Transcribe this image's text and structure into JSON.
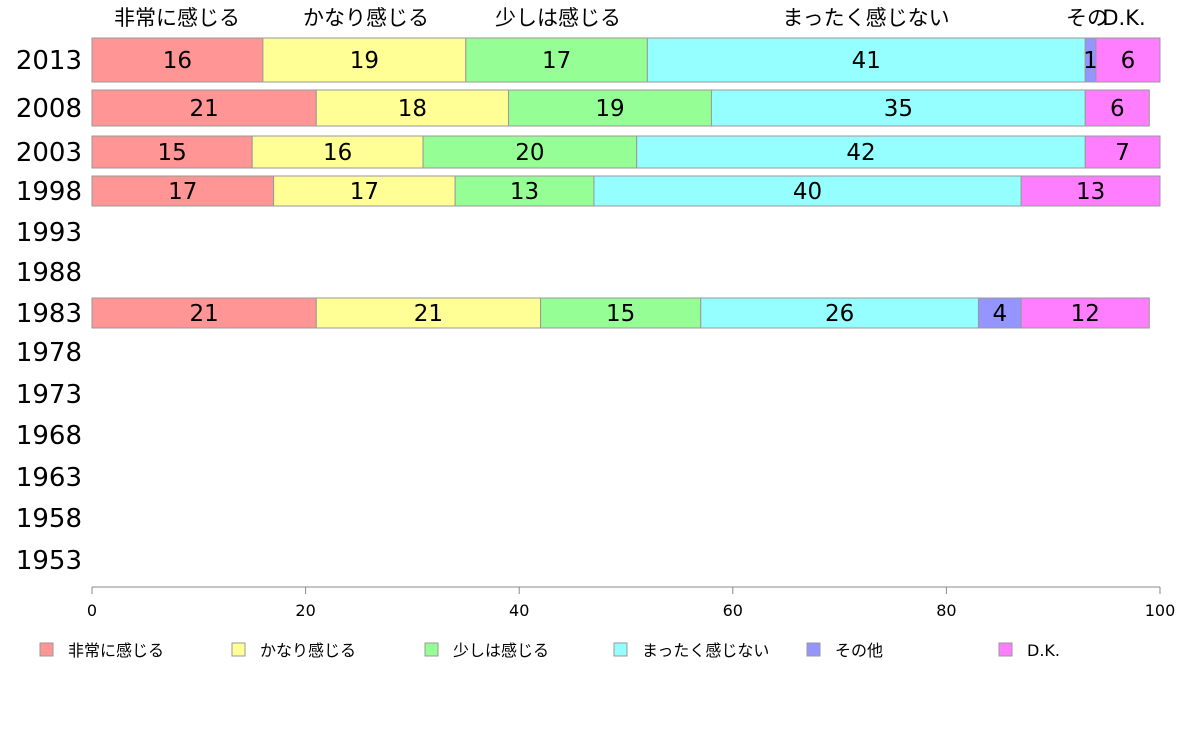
{
  "chart_data": {
    "type": "bar",
    "orientation": "horizontal",
    "stacked": true,
    "categories": [
      "2013",
      "2008",
      "2003",
      "1998",
      "1993",
      "1988",
      "1983",
      "1978",
      "1973",
      "1968",
      "1963",
      "1958",
      "1953"
    ],
    "series": [
      {
        "name": "非常に感じる",
        "color": "#ff9595",
        "values": [
          16,
          21,
          15,
          17,
          null,
          null,
          21,
          null,
          null,
          null,
          null,
          null,
          null
        ]
      },
      {
        "name": "かなり感じる",
        "color": "#ffff95",
        "values": [
          19,
          18,
          16,
          17,
          null,
          null,
          21,
          null,
          null,
          null,
          null,
          null,
          null
        ]
      },
      {
        "name": "少しは感じる",
        "color": "#95ff95",
        "values": [
          17,
          19,
          20,
          13,
          null,
          null,
          15,
          null,
          null,
          null,
          null,
          null,
          null
        ]
      },
      {
        "name": "まったく感じない",
        "color": "#95ffff",
        "values": [
          41,
          35,
          42,
          40,
          null,
          null,
          26,
          null,
          null,
          null,
          null,
          null,
          null
        ]
      },
      {
        "name": "その他",
        "color": "#9595ff",
        "values": [
          1,
          null,
          null,
          null,
          null,
          null,
          4,
          null,
          null,
          null,
          null,
          null,
          null
        ]
      },
      {
        "name": "D.K.",
        "color": "#ff7dff",
        "values": [
          6,
          6,
          7,
          13,
          null,
          null,
          12,
          null,
          null,
          null,
          null,
          null,
          null
        ]
      }
    ],
    "top_labels": [
      "非常に感じる",
      "かなり感じる",
      "少しは感じる",
      "まったく感じない",
      "その",
      "D.K."
    ],
    "xlim": [
      0,
      100
    ],
    "xticks": [
      0,
      20,
      40,
      60,
      80,
      100
    ],
    "grid": false,
    "legend_position": "bottom"
  }
}
